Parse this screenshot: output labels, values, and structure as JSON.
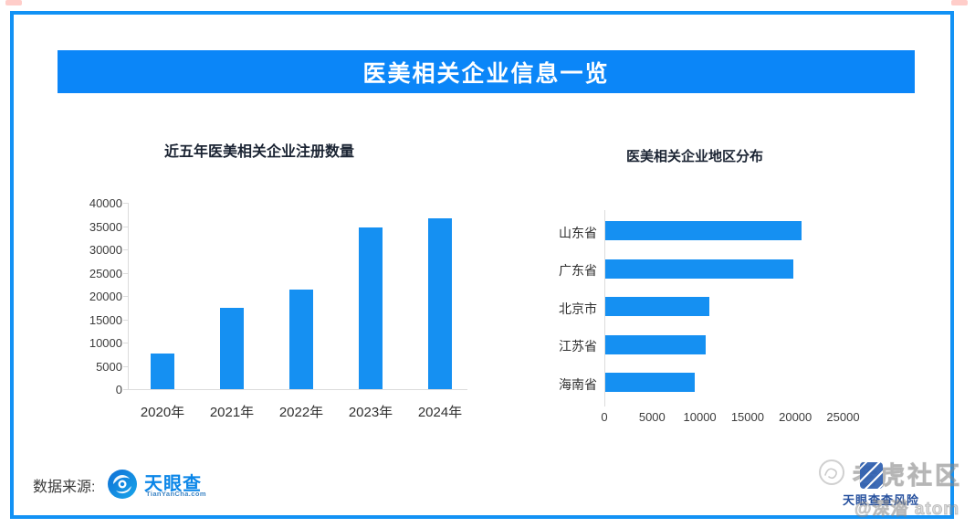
{
  "banner": {
    "title": "医美相关企业信息一览",
    "bg_color": "#0b86f8",
    "text_color": "#ffffff"
  },
  "chart_data": [
    {
      "type": "bar",
      "orientation": "vertical",
      "title": "近五年医美相关企业注册数量",
      "categories": [
        "2020年",
        "2021年",
        "2022年",
        "2023年",
        "2024年"
      ],
      "values": [
        7700,
        17400,
        21300,
        34700,
        36600
      ],
      "xlabel": "",
      "ylabel": "",
      "ylim": [
        0,
        40000
      ],
      "yticks": [
        0,
        5000,
        10000,
        15000,
        20000,
        25000,
        30000,
        35000,
        40000
      ],
      "grid": false,
      "legend": "none",
      "bar_color": "#1590f2"
    },
    {
      "type": "bar",
      "orientation": "horizontal",
      "title": "医美相关企业地区分布",
      "categories": [
        "山东省",
        "广东省",
        "北京市",
        "江苏省",
        "海南省"
      ],
      "values": [
        20600,
        19700,
        10900,
        10500,
        9400
      ],
      "xlabel": "",
      "ylabel": "",
      "xlim": [
        0,
        27000
      ],
      "xticks": [
        0,
        5000,
        10000,
        15000,
        20000,
        25000
      ],
      "grid": false,
      "legend": "none",
      "bar_color": "#1590f2"
    }
  ],
  "footer": {
    "source_label": "数据来源:",
    "logo": {
      "name": "天眼查",
      "subtext": "TianYanCha.com",
      "color": "#0b86e8",
      "icon": "tianyancha-eye-swirl"
    }
  },
  "watermarks": {
    "community": "老虎社区",
    "author": "@深潜 atom",
    "tyc_caption": "天眼查查风险",
    "icons": [
      "tiger-doodle-icon",
      "tianyancha-app-icon"
    ]
  },
  "frame_color": "#1292f5"
}
